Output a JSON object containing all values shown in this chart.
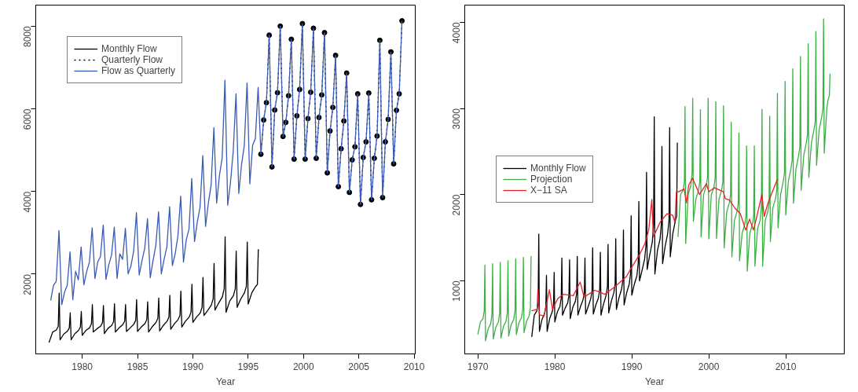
{
  "chart_data": [
    {
      "type": "line",
      "xlabel": "Year",
      "xlim": [
        1975.8,
        2010.1
      ],
      "ylim": [
        70,
        8510
      ],
      "xticks": [
        1980,
        1985,
        1990,
        1995,
        2000,
        2005,
        2010
      ],
      "yticks": [
        2000,
        4000,
        6000,
        8000
      ],
      "grid": false,
      "legend": "top left",
      "line_style": "solid",
      "marker": "none",
      "series": [
        {
          "name": "Monthly Flow",
          "color": "#000000",
          "x": [
            1977,
            1977.333,
            1977.667,
            1977.833,
            1977.917,
            1978,
            1978.333,
            1978.667,
            1978.833,
            1978.917,
            1979,
            1979.333,
            1979.667,
            1979.833,
            1979.917,
            1980,
            1980.333,
            1980.667,
            1980.833,
            1980.917,
            1981,
            1981.333,
            1981.667,
            1981.833,
            1981.917,
            1982,
            1982.333,
            1982.667,
            1982.833,
            1982.917,
            1983,
            1983.333,
            1983.667,
            1983.833,
            1983.917,
            1984,
            1984.333,
            1984.667,
            1984.833,
            1984.917,
            1985,
            1985.333,
            1985.667,
            1985.833,
            1985.917,
            1986,
            1986.333,
            1986.667,
            1986.833,
            1986.917,
            1987,
            1987.333,
            1987.667,
            1987.833,
            1987.917,
            1988,
            1988.333,
            1988.667,
            1988.833,
            1988.917,
            1989,
            1989.333,
            1989.667,
            1989.833,
            1989.917,
            1990,
            1990.333,
            1990.667,
            1990.833,
            1990.917,
            1991,
            1991.333,
            1991.667,
            1991.833,
            1991.917,
            1992,
            1992.333,
            1992.667,
            1992.833,
            1992.917,
            1993,
            1993.333,
            1993.667,
            1993.833,
            1993.917,
            1994,
            1994.333,
            1994.667,
            1994.833,
            1994.917,
            1995,
            1995.333,
            1995.667,
            1995.833,
            1995.917
          ],
          "values": [
            347,
            600,
            650,
            740,
            1542,
            412,
            550,
            620,
            700,
            1063,
            412,
            560,
            640,
            720,
            1097,
            520,
            640,
            700,
            800,
            1263,
            600,
            680,
            740,
            830,
            1243,
            560,
            690,
            760,
            850,
            1283,
            600,
            700,
            780,
            860,
            1263,
            613,
            700,
            790,
            880,
            1382,
            613,
            720,
            800,
            900,
            1329,
            600,
            730,
            830,
            930,
            1422,
            626,
            760,
            860,
            960,
            1488,
            666,
            800,
            900,
            1000,
            1588,
            719,
            860,
            960,
            1080,
            1755,
            832,
            960,
            1060,
            1200,
            1920,
            998,
            1120,
            1250,
            1400,
            2259,
            1131,
            1300,
            1450,
            1650,
            2903,
            1078,
            1350,
            1480,
            1650,
            2558,
            1197,
            1400,
            1550,
            1700,
            2777,
            1277,
            1550,
            1700,
            1750,
            2604
          ]
        },
        {
          "name": "Quarterly Flow",
          "color": "#000000",
          "line_style": "dotted",
          "marker": "circle",
          "x": [
            1996.15,
            1996.4,
            1996.65,
            1996.9,
            1997.15,
            1997.4,
            1997.65,
            1997.9,
            1998.15,
            1998.4,
            1998.65,
            1998.9,
            1999.15,
            1999.4,
            1999.65,
            1999.9,
            2000.15,
            2000.4,
            2000.65,
            2000.9,
            2001.15,
            2001.4,
            2001.65,
            2001.9,
            2002.15,
            2002.4,
            2002.65,
            2002.9,
            2003.15,
            2003.4,
            2003.65,
            2003.9,
            2004.15,
            2004.4,
            2004.65,
            2004.9,
            2005.15,
            2005.4,
            2005.65,
            2005.9,
            2006.15,
            2006.4,
            2006.65,
            2006.9,
            2007.15,
            2007.4,
            2007.65,
            2007.9,
            2008.15,
            2008.4,
            2008.65,
            2008.9
          ],
          "values": [
            4902,
            5730,
            6150,
            7783,
            4596,
            5970,
            6390,
            8000,
            5333,
            5671,
            6317,
            7683,
            4783,
            5831,
            6468,
            8062,
            4783,
            5765,
            6402,
            7950,
            4803,
            5791,
            6337,
            7843,
            4450,
            5466,
            6036,
            7293,
            4118,
            5034,
            5705,
            6866,
            3978,
            4763,
            5082,
            6363,
            3687,
            4823,
            5201,
            6382,
            3799,
            4803,
            5341,
            7657,
            3852,
            5201,
            5745,
            7378,
            4669,
            5964,
            6363,
            8130
          ]
        },
        {
          "name": "Flow as Quarterly",
          "color": "#3a5bb5",
          "x": [
            1977.15,
            1977.4,
            1977.65,
            1977.9,
            1978.15,
            1978.4,
            1978.65,
            1978.9,
            1979.15,
            1979.4,
            1979.65,
            1979.9,
            1980.15,
            1980.4,
            1980.65,
            1980.9,
            1981.15,
            1981.4,
            1981.65,
            1981.9,
            1982.15,
            1982.4,
            1982.65,
            1982.9,
            1983.15,
            1983.4,
            1983.65,
            1983.9,
            1984.15,
            1984.4,
            1984.65,
            1984.9,
            1985.15,
            1985.4,
            1985.65,
            1985.9,
            1986.15,
            1986.4,
            1986.65,
            1986.9,
            1987.15,
            1987.4,
            1987.65,
            1987.9,
            1988.15,
            1988.4,
            1988.65,
            1988.9,
            1989.15,
            1989.4,
            1989.65,
            1989.9,
            1990.15,
            1990.4,
            1990.65,
            1990.9,
            1991.15,
            1991.4,
            1991.65,
            1991.9,
            1992.15,
            1992.4,
            1992.65,
            1992.9,
            1993.15,
            1993.4,
            1993.65,
            1993.9,
            1994.15,
            1994.4,
            1994.65,
            1994.9,
            1995.15,
            1995.4,
            1995.65,
            1995.9,
            1996.15,
            1996.4,
            1996.65,
            1996.9,
            1997.15,
            1997.4,
            1997.65,
            1997.9,
            1998.15,
            1998.4,
            1998.65,
            1998.9,
            1999.15,
            1999.4,
            1999.65,
            1999.9,
            2000.15,
            2000.4,
            2000.65,
            2000.9,
            2001.15,
            2001.4,
            2001.65,
            2001.9,
            2002.15,
            2002.4,
            2002.65,
            2002.9,
            2003.15,
            2003.4,
            2003.65,
            2003.9,
            2004.15,
            2004.4,
            2004.65,
            2004.9,
            2005.15,
            2005.4,
            2005.65,
            2005.9,
            2006.15,
            2006.4,
            2006.65,
            2006.9,
            2007.15,
            2007.4,
            2007.65,
            2007.9,
            2008.15,
            2008.4,
            2008.65,
            2008.9
          ],
          "values": [
            1363,
            1727,
            1827,
            3056,
            1263,
            1562,
            1733,
            2538,
            1382,
            2074,
            1861,
            2657,
            1741,
            2060,
            2293,
            3122,
            1894,
            2293,
            2426,
            3189,
            1874,
            2226,
            2458,
            3135,
            1894,
            2492,
            2359,
            3109,
            2006,
            2193,
            2558,
            3488,
            1980,
            2325,
            2624,
            3341,
            1914,
            2325,
            2691,
            3508,
            2006,
            2359,
            2657,
            3633,
            2206,
            2492,
            2923,
            3886,
            2293,
            2823,
            3089,
            4317,
            2790,
            3255,
            3620,
            4869,
            3155,
            3719,
            4151,
            5546,
            3719,
            4383,
            4815,
            6694,
            3667,
            4217,
            4980,
            6363,
            3952,
            4650,
            5115,
            6627,
            4185,
            5115,
            5281,
            6522,
            4902,
            5730,
            6150,
            7783,
            4596,
            5970,
            6390,
            8000,
            5333,
            5671,
            6317,
            7683,
            4783,
            5831,
            6468,
            8062,
            4783,
            5765,
            6402,
            7950,
            4803,
            5791,
            6337,
            7843,
            4450,
            5466,
            6036,
            7293,
            4118,
            5034,
            5705,
            6866,
            3978,
            4763,
            5082,
            6363,
            3687,
            4823,
            5201,
            6382,
            3799,
            4803,
            5341,
            7657,
            3852,
            5201,
            5745,
            7378,
            4669,
            5964,
            6363,
            8130
          ]
        }
      ]
    },
    {
      "type": "line",
      "xlabel": "Year",
      "xlim": [
        1968.3,
        2017.6
      ],
      "ylim": [
        150,
        4200
      ],
      "xticks": [
        1970,
        1980,
        1990,
        2000,
        2010
      ],
      "yticks": [
        1000,
        2000,
        3000,
        4000
      ],
      "grid": false,
      "legend": "left",
      "line_style": "solid",
      "marker": "none",
      "series": [
        {
          "name": "Monthly Flow",
          "color": "#000000",
          "x": [
            1977,
            1977.333,
            1977.667,
            1977.833,
            1977.917,
            1978,
            1978.333,
            1978.667,
            1978.833,
            1978.917,
            1979,
            1979.333,
            1979.667,
            1979.833,
            1979.917,
            1980,
            1980.333,
            1980.667,
            1980.833,
            1980.917,
            1981,
            1981.333,
            1981.667,
            1981.833,
            1981.917,
            1982,
            1982.333,
            1982.667,
            1982.833,
            1982.917,
            1983,
            1983.333,
            1983.667,
            1983.833,
            1983.917,
            1984,
            1984.333,
            1984.667,
            1984.833,
            1984.917,
            1985,
            1985.333,
            1985.667,
            1985.833,
            1985.917,
            1986,
            1986.333,
            1986.667,
            1986.833,
            1986.917,
            1987,
            1987.333,
            1987.667,
            1987.833,
            1987.917,
            1988,
            1988.333,
            1988.667,
            1988.833,
            1988.917,
            1989,
            1989.333,
            1989.667,
            1989.833,
            1989.917,
            1990,
            1990.333,
            1990.667,
            1990.833,
            1990.917,
            1991,
            1991.333,
            1991.667,
            1991.833,
            1991.917,
            1992,
            1992.333,
            1992.667,
            1992.833,
            1992.917,
            1993,
            1993.333,
            1993.667,
            1993.833,
            1993.917,
            1994,
            1994.333,
            1994.667,
            1994.833,
            1994.917,
            1995,
            1995.333,
            1995.667,
            1995.833,
            1995.917
          ],
          "values": [
            347,
            600,
            650,
            740,
            1542,
            412,
            550,
            620,
            700,
            1063,
            412,
            560,
            640,
            720,
            1097,
            520,
            640,
            700,
            800,
            1263,
            600,
            680,
            740,
            830,
            1243,
            560,
            690,
            760,
            850,
            1283,
            600,
            700,
            780,
            860,
            1263,
            613,
            700,
            790,
            880,
            1382,
            613,
            720,
            800,
            900,
            1329,
            600,
            730,
            830,
            930,
            1422,
            626,
            760,
            860,
            960,
            1488,
            666,
            800,
            900,
            1000,
            1588,
            719,
            860,
            960,
            1080,
            1755,
            832,
            960,
            1060,
            1200,
            1920,
            998,
            1120,
            1250,
            1400,
            2259,
            1131,
            1300,
            1450,
            1650,
            2903,
            1078,
            1350,
            1480,
            1650,
            2558,
            1197,
            1400,
            1550,
            1700,
            2777,
            1277,
            1550,
            1700,
            1750,
            2604
          ]
        },
        {
          "name": "Projection",
          "color": "#3cb043",
          "x": [
            1970,
            1970.333,
            1970.667,
            1970.833,
            1970.917,
            1971,
            1971.333,
            1971.667,
            1971.833,
            1971.917,
            1972,
            1972.333,
            1972.667,
            1972.833,
            1972.917,
            1973,
            1973.333,
            1973.667,
            1973.833,
            1973.917,
            1974,
            1974.333,
            1974.667,
            1974.833,
            1974.917,
            1975,
            1975.333,
            1975.667,
            1975.833,
            1975.917,
            1976,
            1976.333,
            1976.667,
            1976.833,
            1976.917,
            1986,
            1996,
            1996.333,
            1996.667,
            1996.833,
            1996.917,
            1997,
            1997.333,
            1997.667,
            1997.833,
            1997.917,
            1998,
            1998.333,
            1998.667,
            1998.833,
            1998.917,
            1999,
            1999.333,
            1999.667,
            1999.833,
            1999.917,
            2000,
            2000.333,
            2000.667,
            2000.833,
            2000.917,
            2001,
            2001.333,
            2001.667,
            2001.833,
            2001.917,
            2002,
            2002.333,
            2002.667,
            2002.833,
            2002.917,
            2003,
            2003.333,
            2003.667,
            2003.833,
            2003.917,
            2004,
            2004.333,
            2004.667,
            2004.833,
            2004.917,
            2005,
            2005.333,
            2005.667,
            2005.833,
            2005.917,
            2006,
            2006.333,
            2006.667,
            2006.833,
            2006.917,
            2007,
            2007.333,
            2007.667,
            2007.833,
            2007.917,
            2008,
            2008.333,
            2008.667,
            2008.833,
            2008.917,
            2009,
            2009.333,
            2009.667,
            2009.833,
            2009.917,
            2010,
            2010.333,
            2010.667,
            2010.833,
            2010.917,
            2011,
            2011.333,
            2011.667,
            2011.833,
            2011.917,
            2012,
            2012.333,
            2012.667,
            2012.833,
            2012.917,
            2013,
            2013.333,
            2013.667,
            2013.833,
            2013.917,
            2014,
            2014.333,
            2014.667,
            2014.833,
            2014.917,
            2015,
            2015.333,
            2015.5,
            2015.667,
            2015.75
          ],
          "values": [
            375,
            520,
            560,
            650,
            1181,
            302,
            440,
            500,
            600,
            1197,
            324,
            460,
            520,
            620,
            1213,
            333,
            470,
            530,
            630,
            1232,
            356,
            490,
            550,
            650,
            1254,
            375,
            510,
            570,
            670,
            1270,
            397,
            530,
            590,
            690,
            1286,
            null,
            1508,
            2000,
            2050,
            2150,
            3023,
            1432,
            2000,
            2100,
            2250,
            3118,
            1690,
            1950,
            2050,
            2150,
            2985,
            1508,
            2000,
            2100,
            2200,
            3118,
            1486,
            2000,
            2080,
            2200,
            3080,
            1492,
            1950,
            2050,
            2150,
            3032,
            1381,
            1800,
            1900,
            2000,
            2842,
            1276,
            1700,
            1800,
            1900,
            2715,
            1229,
            1550,
            1650,
            1750,
            2566,
            1111,
            1550,
            1650,
            1750,
            2566,
            1169,
            1600,
            1700,
            1850,
            2991,
            1169,
            1700,
            1800,
            1900,
            2911,
            1454,
            1850,
            1950,
            2050,
            3175,
            1613,
            2000,
            2150,
            2250,
            3314,
            1762,
            2150,
            2300,
            2400,
            3460,
            1900,
            2300,
            2450,
            2550,
            3603,
            2050,
            2450,
            2600,
            2700,
            3752,
            2200,
            2600,
            2750,
            2850,
            3895,
            2340,
            2750,
            2900,
            3000,
            4042,
            2480,
            3000,
            3100,
            3150,
            3404
          ]
        },
        {
          "name": "X−11 SA",
          "color": "#e8202a",
          "x": [
            1976.96,
            1977.7,
            1977.8,
            1978,
            1978.6,
            1979.3,
            1979.7,
            1980.4,
            1981.1,
            1982.4,
            1983.3,
            1983.8,
            1985.2,
            1986.5,
            1987.9,
            1989.3,
            1989.9,
            1991,
            1991.7,
            1992.2,
            1992.6,
            1992.8,
            1993.7,
            1994.6,
            1995.3,
            1995.6,
            1995.8,
            1996.08,
            1996.8,
            1997.1,
            1997.4,
            1997.9,
            1998.8,
            1999.7,
            2000,
            2000.7,
            2001.9,
            2002.15,
            2002.7,
            2003.4,
            2004.1,
            2004.8,
            2005.3,
            2005.8,
            2006.2,
            2006.9,
            2007.2,
            2007.7,
            2008.4,
            2008.9
          ],
          "values": [
            651,
            667,
            895,
            604,
            588,
            895,
            667,
            794,
            842,
            826,
            984,
            810,
            889,
            842,
            937,
            1048,
            1143,
            1302,
            1429,
            1588,
            1943,
            1508,
            1683,
            1778,
            1762,
            1683,
            2032,
            2032,
            2064,
            1905,
            2111,
            2190,
            2000,
            2127,
            2032,
            2080,
            2032,
            1952,
            1937,
            1842,
            1778,
            1588,
            1714,
            1588,
            1730,
            2000,
            1746,
            1905,
            2064,
            2175
          ]
        }
      ]
    }
  ]
}
